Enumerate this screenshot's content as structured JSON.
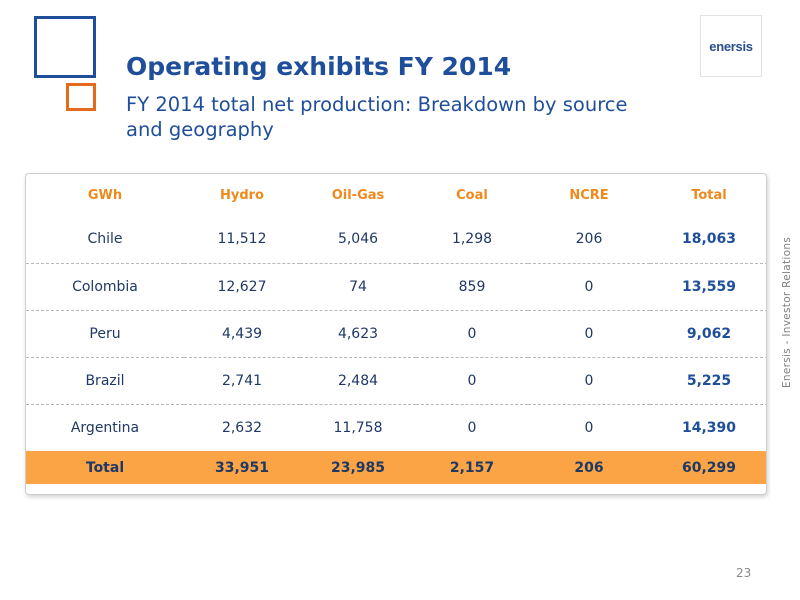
{
  "logo": {
    "text": "enersis"
  },
  "title": "Operating exhibits FY 2014",
  "subtitle": "FY 2014 total net production: Breakdown by source and geography",
  "side_text": "Enersis - Investor Relations",
  "page_number": "23",
  "colors": {
    "accent_blue": "#1f4e9a",
    "accent_orange": "#e56a1b",
    "header_text": "#f0891c",
    "total_row_bg": "#faa446"
  },
  "table": {
    "headers": [
      "GWh",
      "Hydro",
      "Oil-Gas",
      "Coal",
      "NCRE",
      "Total"
    ],
    "rows": [
      [
        "Chile",
        "11,512",
        "5,046",
        "1,298",
        "206",
        "18,063"
      ],
      [
        "Colombia",
        "12,627",
        "74",
        "859",
        "0",
        "13,559"
      ],
      [
        "Peru",
        "4,439",
        "4,623",
        "0",
        "0",
        "9,062"
      ],
      [
        "Brazil",
        "2,741",
        "2,484",
        "0",
        "0",
        "5,225"
      ],
      [
        "Argentina",
        "2,632",
        "11,758",
        "0",
        "0",
        "14,390"
      ]
    ],
    "total_row": [
      "Total",
      "33,951",
      "23,985",
      "2,157",
      "206",
      "60,299"
    ]
  }
}
